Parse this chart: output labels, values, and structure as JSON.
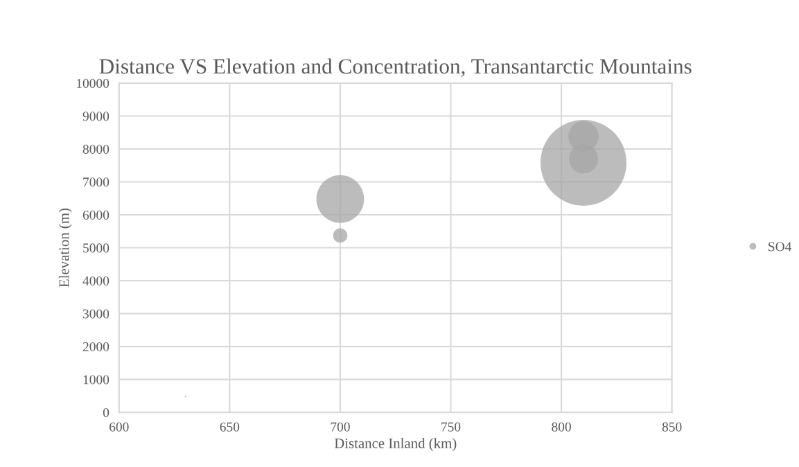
{
  "chart_data": {
    "type": "bubble",
    "title": "Distance VS Elevation and Concentration, Transantarctic Mountains",
    "xlabel": "Distance Inland (km)",
    "ylabel": "Elevation (m)",
    "x": [
      630,
      700,
      700,
      810,
      810,
      810
    ],
    "series": [
      {
        "name": "SO4",
        "color": "#a5a5a5",
        "values": [
          480,
          6480,
          5370,
          7580,
          8380,
          7700
        ],
        "sizes": [
          0.0003,
          0.308,
          0.028,
          1,
          0.124,
          0.115
        ]
      }
    ],
    "xlim": [
      600,
      850
    ],
    "xticks": [
      600,
      650,
      700,
      750,
      800,
      850
    ],
    "ylim": [
      0,
      10000
    ],
    "yticks": [
      0,
      1000,
      2000,
      3000,
      4000,
      5000,
      6000,
      7000,
      8000,
      9000,
      10000
    ],
    "grid": true,
    "legend": "right"
  }
}
